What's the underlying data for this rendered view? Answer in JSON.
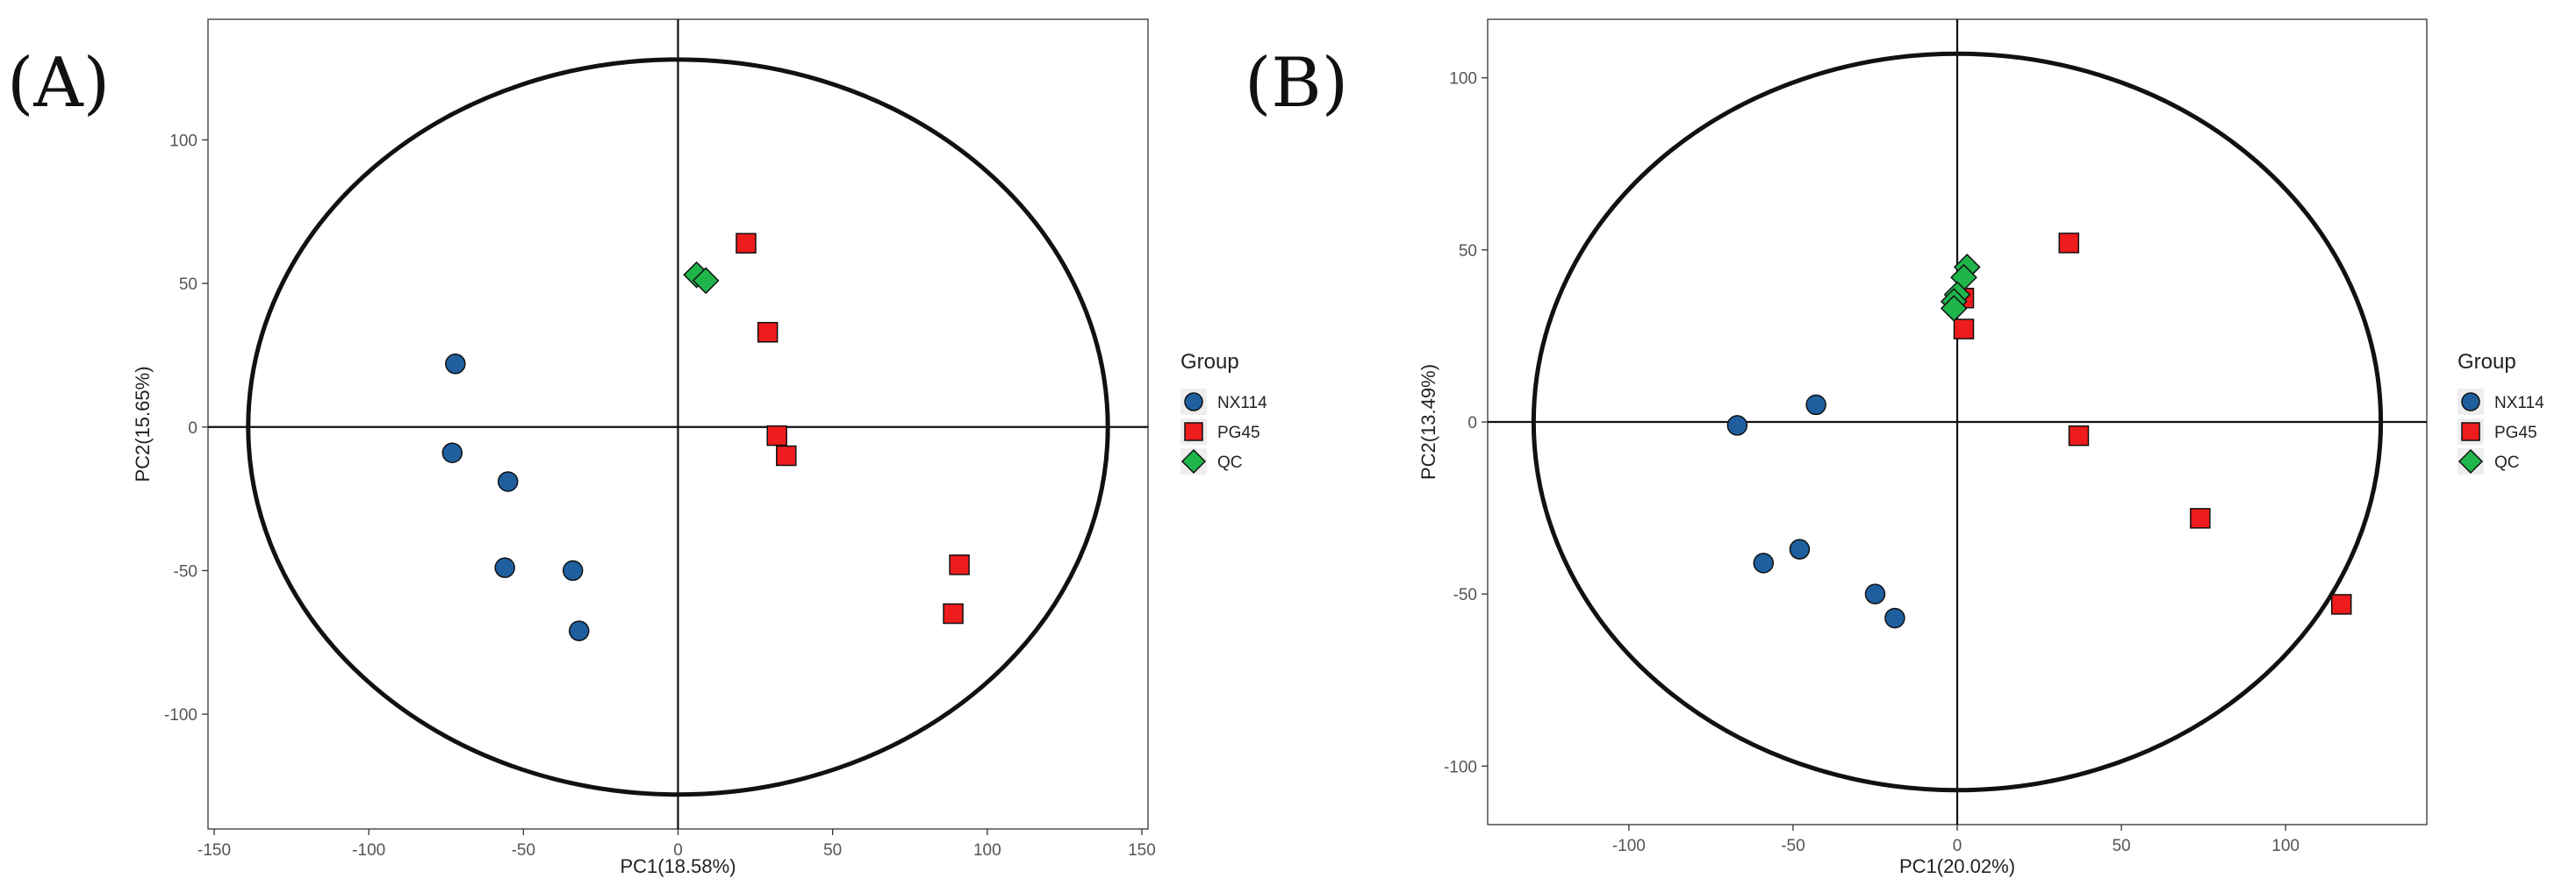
{
  "figure": {
    "panel_a_label": "(A)",
    "panel_b_label": "(B)"
  },
  "colors": {
    "NX114": "#1f5fa0",
    "PG45": "#ee1c1c",
    "QC": "#1fb54a"
  },
  "chart_data": [
    {
      "type": "scatter",
      "panel": "(A)",
      "xlabel": "PC1(18.58%)",
      "ylabel": "PC2(15.65%)",
      "xlim": [
        -152,
        152
      ],
      "ylim": [
        -140,
        142
      ],
      "xticks": [
        -150,
        -100,
        -50,
        0,
        50,
        100,
        150
      ],
      "yticks": [
        -100,
        -50,
        0,
        50,
        100
      ],
      "grid": false,
      "ellipse": {
        "rx": 139,
        "ry": 128
      },
      "legend": {
        "title": "Group",
        "placement": "right",
        "entries": [
          "NX114",
          "PG45",
          "QC"
        ]
      },
      "series": [
        {
          "name": "NX114",
          "marker": "circle",
          "points": [
            [
              -72,
              22
            ],
            [
              -73,
              -9
            ],
            [
              -55,
              -19
            ],
            [
              -56,
              -49
            ],
            [
              -34,
              -50
            ],
            [
              -32,
              -71
            ]
          ]
        },
        {
          "name": "PG45",
          "marker": "square",
          "points": [
            [
              22,
              64
            ],
            [
              29,
              33
            ],
            [
              32,
              -3
            ],
            [
              35,
              -10
            ],
            [
              91,
              -48
            ],
            [
              89,
              -65
            ]
          ]
        },
        {
          "name": "QC",
          "marker": "diamond",
          "points": [
            [
              6,
              53
            ],
            [
              9,
              51
            ]
          ]
        }
      ]
    },
    {
      "type": "scatter",
      "panel": "(B)",
      "xlabel": "PC1(20.02%)",
      "ylabel": "PC2(13.49%)",
      "xlim": [
        -143,
        143
      ],
      "ylim": [
        -117,
        117
      ],
      "xticks": [
        -100,
        -50,
        0,
        50,
        100
      ],
      "yticks": [
        -100,
        -50,
        0,
        50,
        100
      ],
      "grid": false,
      "ellipse": {
        "rx": 129,
        "ry": 107
      },
      "legend": {
        "title": "Group",
        "placement": "right",
        "entries": [
          "NX114",
          "PG45",
          "QC"
        ]
      },
      "series": [
        {
          "name": "NX114",
          "marker": "circle",
          "points": [
            [
              -43,
              5
            ],
            [
              -67,
              -1
            ],
            [
              -59,
              -41
            ],
            [
              -48,
              -37
            ],
            [
              -25,
              -50
            ],
            [
              -19,
              -57
            ]
          ]
        },
        {
          "name": "PG45",
          "marker": "square",
          "points": [
            [
              34,
              52
            ],
            [
              2,
              36
            ],
            [
              2,
              27
            ],
            [
              37,
              -4
            ],
            [
              74,
              -28
            ],
            [
              117,
              -53
            ]
          ]
        },
        {
          "name": "QC",
          "marker": "diamond",
          "points": [
            [
              3,
              45
            ],
            [
              2,
              42
            ],
            [
              0,
              37
            ],
            [
              -1,
              35
            ],
            [
              -1,
              33
            ]
          ]
        }
      ]
    }
  ]
}
